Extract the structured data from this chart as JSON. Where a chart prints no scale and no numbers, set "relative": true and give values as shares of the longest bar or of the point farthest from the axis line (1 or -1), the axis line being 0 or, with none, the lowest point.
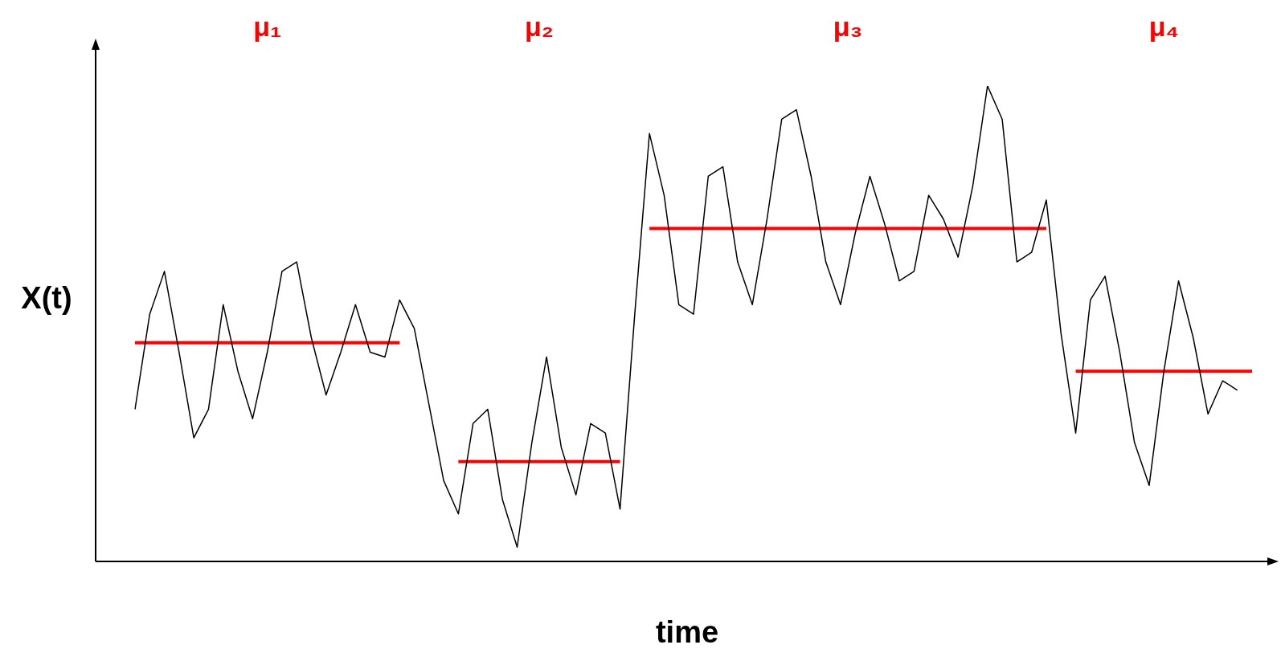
{
  "chart_data": {
    "type": "line",
    "relative": true,
    "xlabel": "time",
    "ylabel": "X(t)",
    "tick_labels": false,
    "grid": false,
    "legend": false,
    "marker": "none",
    "line_style": "solid",
    "annotations": [
      "μ₁",
      "μ₂",
      "μ₃",
      "μ₄"
    ],
    "categories": [
      null,
      null,
      null,
      null,
      null,
      null,
      null,
      null,
      null,
      null,
      null,
      null,
      null,
      null,
      null,
      null,
      null,
      null,
      null,
      null,
      null,
      null,
      null,
      null,
      null,
      null,
      null,
      null,
      null,
      null,
      null,
      null,
      null,
      null,
      null,
      null,
      null,
      null,
      null,
      null,
      null,
      null,
      null,
      null,
      null,
      null,
      null,
      null,
      null,
      null,
      null,
      null,
      null,
      null,
      null,
      null,
      null,
      null,
      null,
      null,
      null,
      null,
      null,
      null,
      null,
      null,
      null,
      null,
      null,
      null,
      null,
      null,
      null,
      null,
      null,
      null,
      null
    ],
    "series": [
      {
        "color": "#000000",
        "values": [
          0.32,
          0.52,
          0.61,
          0.44,
          0.26,
          0.32,
          0.54,
          0.4,
          0.3,
          0.44,
          0.61,
          0.63,
          0.47,
          0.35,
          0.44,
          0.54,
          0.44,
          0.43,
          0.55,
          0.49,
          0.33,
          0.17,
          0.1,
          0.29,
          0.32,
          0.13,
          0.03,
          0.25,
          0.43,
          0.24,
          0.14,
          0.29,
          0.27,
          0.11,
          0.52,
          0.9,
          0.77,
          0.54,
          0.52,
          0.81,
          0.83,
          0.63,
          0.54,
          0.72,
          0.93,
          0.95,
          0.81,
          0.63,
          0.54,
          0.69,
          0.81,
          0.71,
          0.59,
          0.61,
          0.77,
          0.72,
          0.64,
          0.79,
          1,
          0.93,
          0.63,
          0.65,
          0.76,
          0.48,
          0.27,
          0.55,
          0.6,
          0.44,
          0.25,
          0.16,
          0.4,
          0.59,
          0.47,
          0.31,
          0.38,
          0.36,
          null
        ]
      },
      {
        "color": "#ff0000",
        "values": [
          0.46,
          0.46,
          0.46,
          0.46,
          0.46,
          0.46,
          0.46,
          0.46,
          0.46,
          0.46,
          0.46,
          0.46,
          0.46,
          0.46,
          0.46,
          0.46,
          0.46,
          0.46,
          0.46,
          null,
          null,
          null,
          null,
          null,
          null,
          null,
          null,
          null,
          null,
          null,
          null,
          null,
          null,
          null,
          null,
          null,
          null,
          null,
          null,
          null,
          null,
          null,
          null,
          null,
          null,
          null,
          null,
          null,
          null,
          null,
          null,
          null,
          null,
          null,
          null,
          null,
          null,
          null,
          null,
          null,
          null,
          null,
          null,
          null,
          null,
          null,
          null,
          null,
          null,
          null,
          null,
          null,
          null,
          null,
          null,
          null,
          null
        ]
      },
      {
        "color": "#ff0000",
        "values": [
          null,
          null,
          null,
          null,
          null,
          null,
          null,
          null,
          null,
          null,
          null,
          null,
          null,
          null,
          null,
          null,
          null,
          null,
          null,
          null,
          null,
          null,
          0.21,
          0.21,
          0.21,
          0.21,
          0.21,
          0.21,
          0.21,
          0.21,
          0.21,
          0.21,
          0.21,
          0.21,
          null,
          null,
          null,
          null,
          null,
          null,
          null,
          null,
          null,
          null,
          null,
          null,
          null,
          null,
          null,
          null,
          null,
          null,
          null,
          null,
          null,
          null,
          null,
          null,
          null,
          null,
          null,
          null,
          null,
          null,
          null,
          null,
          null,
          null,
          null,
          null,
          null,
          null,
          null,
          null,
          null,
          null,
          null
        ]
      },
      {
        "color": "#ff0000",
        "values": [
          null,
          null,
          null,
          null,
          null,
          null,
          null,
          null,
          null,
          null,
          null,
          null,
          null,
          null,
          null,
          null,
          null,
          null,
          null,
          null,
          null,
          null,
          null,
          null,
          null,
          null,
          null,
          null,
          null,
          null,
          null,
          null,
          null,
          null,
          null,
          0.7,
          0.7,
          0.7,
          0.7,
          0.7,
          0.7,
          0.7,
          0.7,
          0.7,
          0.7,
          0.7,
          0.7,
          0.7,
          0.7,
          0.7,
          0.7,
          0.7,
          0.7,
          0.7,
          0.7,
          0.7,
          0.7,
          0.7,
          0.7,
          0.7,
          0.7,
          0.7,
          0.7,
          null,
          null,
          null,
          null,
          null,
          null,
          null,
          null,
          null,
          null,
          null,
          null,
          null,
          null
        ]
      },
      {
        "color": "#ff0000",
        "values": [
          null,
          null,
          null,
          null,
          null,
          null,
          null,
          null,
          null,
          null,
          null,
          null,
          null,
          null,
          null,
          null,
          null,
          null,
          null,
          null,
          null,
          null,
          null,
          null,
          null,
          null,
          null,
          null,
          null,
          null,
          null,
          null,
          null,
          null,
          null,
          null,
          null,
          null,
          null,
          null,
          null,
          null,
          null,
          null,
          null,
          null,
          null,
          null,
          null,
          null,
          null,
          null,
          null,
          null,
          null,
          null,
          null,
          null,
          null,
          null,
          null,
          null,
          null,
          null,
          0.4,
          0.4,
          0.4,
          0.4,
          0.4,
          0.4,
          0.4,
          0.4,
          0.4,
          0.4,
          0.4,
          0.4,
          0.4
        ]
      }
    ]
  }
}
